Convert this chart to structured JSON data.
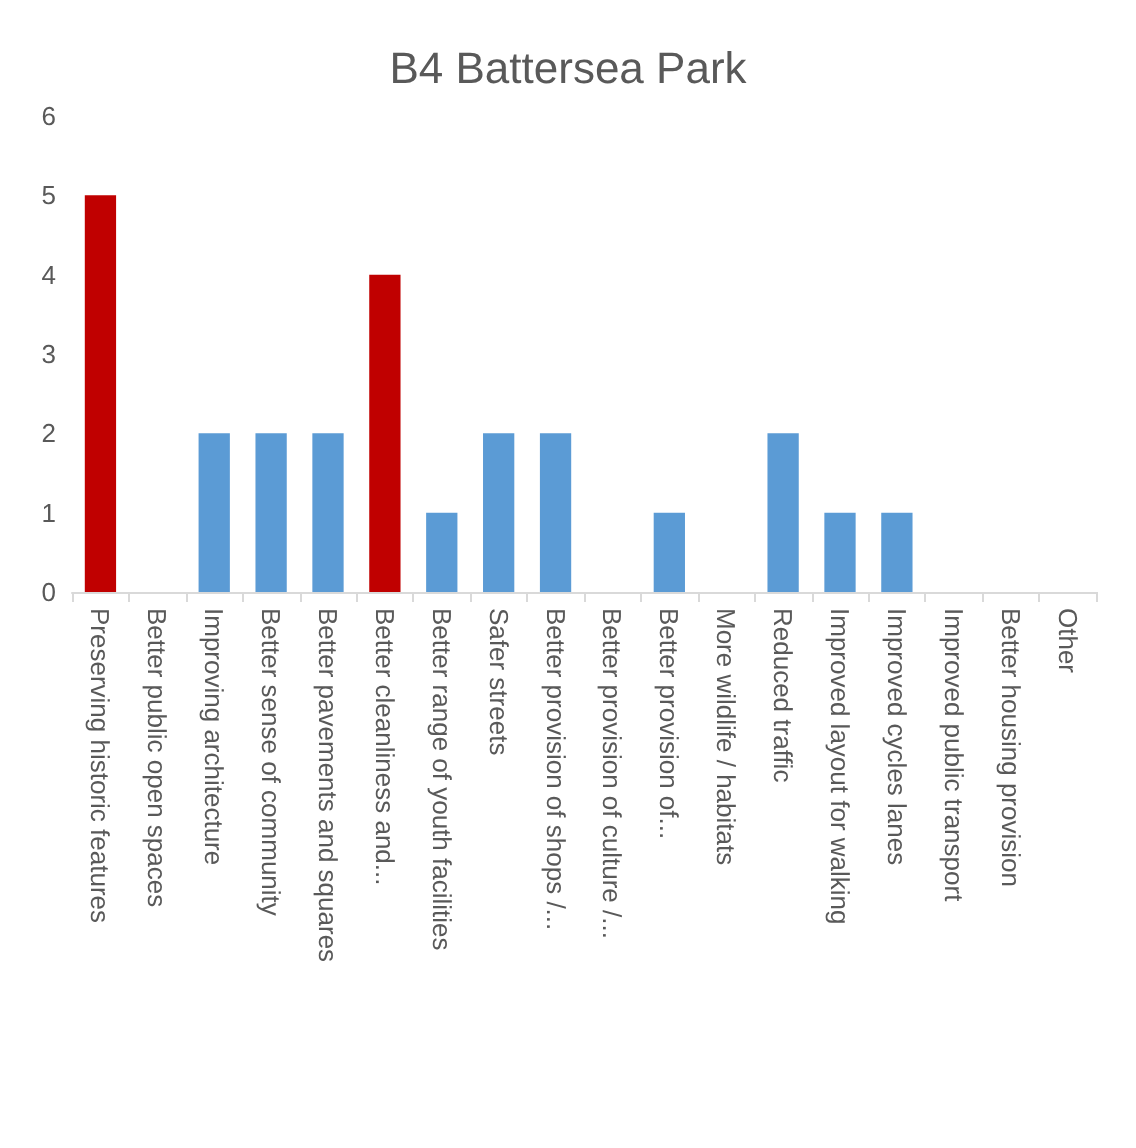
{
  "chart_data": {
    "type": "bar",
    "title": "B4 Battersea Park",
    "categories": [
      "Preserving historic features",
      "Better public open spaces",
      "Improving architecture",
      "Better sense of community",
      "Better pavements and squares",
      "Better cleanliness and...",
      "Better range of youth facilities",
      "Safer streets",
      "Better provision of shops /...",
      "Better provision of culture /...",
      "Better provision of...",
      "More wildlife / habitats",
      "Reduced traffic",
      "Improved layout for walking",
      "Improved cycles lanes",
      "Improved public transport",
      "Better housing provision",
      "Other"
    ],
    "values": [
      5,
      0,
      2,
      2,
      2,
      4,
      1,
      2,
      2,
      0,
      1,
      0,
      2,
      1,
      1,
      0,
      0,
      0
    ],
    "colors": [
      "#c00000",
      "#5b9bd5",
      "#5b9bd5",
      "#5b9bd5",
      "#5b9bd5",
      "#c00000",
      "#5b9bd5",
      "#5b9bd5",
      "#5b9bd5",
      "#5b9bd5",
      "#5b9bd5",
      "#5b9bd5",
      "#5b9bd5",
      "#5b9bd5",
      "#5b9bd5",
      "#5b9bd5",
      "#5b9bd5",
      "#5b9bd5"
    ],
    "ylim": [
      0,
      6
    ],
    "yticks": [
      0,
      1,
      2,
      3,
      4,
      5,
      6
    ],
    "grid": false
  }
}
